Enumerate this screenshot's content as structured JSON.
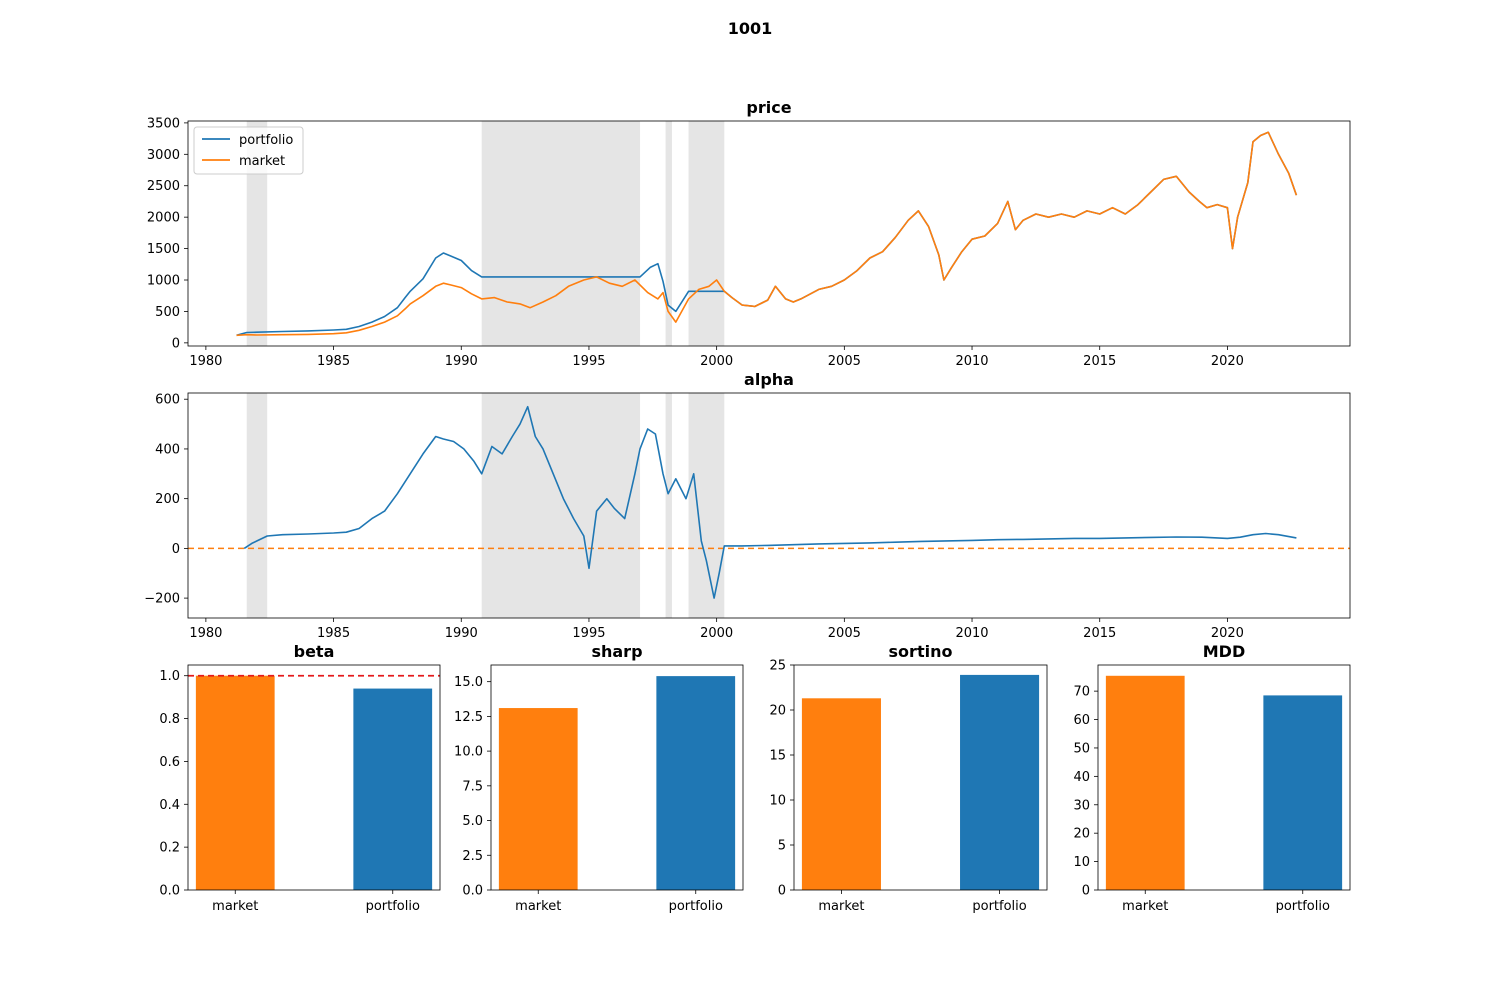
{
  "figure": {
    "title": "1001"
  },
  "colors": {
    "portfolio": "#1f77b4",
    "market": "#ff7f0e",
    "shade": "#e5e5e5",
    "beta_ref": "#e41a1c",
    "alpha_zero": "#ff7f0e"
  },
  "shaded_periods": [
    [
      1981.6,
      1982.4
    ],
    [
      1990.8,
      1997.0
    ],
    [
      1998.0,
      1998.25
    ],
    [
      1998.9,
      2000.3
    ]
  ],
  "chart_data": [
    {
      "id": "price",
      "type": "line",
      "title": "price",
      "xlim": [
        1979.3,
        2024.8
      ],
      "ylim": [
        -50,
        3530
      ],
      "x_ticks": [
        1980,
        1985,
        1990,
        1995,
        2000,
        2005,
        2010,
        2015,
        2020
      ],
      "y_ticks": [
        0,
        500,
        1000,
        1500,
        2000,
        2500,
        3000,
        3500
      ],
      "legend": "upper-left",
      "series": [
        {
          "name": "portfolio",
          "color": "#1f77b4",
          "x": [
            1981.2,
            1981.6,
            1982.0,
            1983.0,
            1984.0,
            1985.0,
            1985.5,
            1986.0,
            1986.5,
            1987.0,
            1987.5,
            1987.8,
            1988.0,
            1988.5,
            1989.0,
            1989.3,
            1989.6,
            1990.0,
            1990.4,
            1990.8,
            1991.5,
            1993.0,
            1995.0,
            1997.0,
            1997.4,
            1997.7,
            1997.9,
            1998.1,
            1998.4,
            1998.9,
            1999.5,
            2000.3,
            2000.6,
            2001.0,
            2001.5,
            2002.0,
            2002.3,
            2002.7,
            2003.0,
            2003.3,
            2004.0,
            2004.5,
            2005.0,
            2005.5,
            2006.0,
            2006.5,
            2007.0,
            2007.5,
            2007.9,
            2008.3,
            2008.7,
            2008.9,
            2009.2,
            2009.6,
            2010.0,
            2010.5,
            2011.0,
            2011.4,
            2011.7,
            2012.0,
            2012.5,
            2013.0,
            2013.5,
            2014.0,
            2014.5,
            2015.0,
            2015.5,
            2016.0,
            2016.5,
            2017.0,
            2017.5,
            2018.0,
            2018.5,
            2018.9,
            2019.2,
            2019.6,
            2020.0,
            2020.2,
            2020.4,
            2020.8,
            2021.0,
            2021.3,
            2021.6,
            2022.0,
            2022.4,
            2022.7
          ],
          "y": [
            120,
            165,
            170,
            180,
            190,
            205,
            215,
            260,
            330,
            420,
            560,
            720,
            820,
            1020,
            1350,
            1430,
            1380,
            1310,
            1150,
            1050,
            1050,
            1050,
            1050,
            1050,
            1200,
            1260,
            980,
            600,
            500,
            820,
            820,
            820,
            720,
            600,
            580,
            680,
            900,
            700,
            650,
            700,
            850,
            900,
            1000,
            1150,
            1350,
            1450,
            1680,
            1950,
            2100,
            1850,
            1400,
            1000,
            1200,
            1450,
            1650,
            1700,
            1900,
            2250,
            1800,
            1950,
            2050,
            2000,
            2050,
            2000,
            2100,
            2050,
            2150,
            2050,
            2200,
            2400,
            2600,
            2650,
            2400,
            2250,
            2150,
            2200,
            2150,
            1500,
            2000,
            2550,
            3200,
            3300,
            3350,
            3000,
            2700,
            2350
          ]
        },
        {
          "name": "market",
          "color": "#ff7f0e",
          "x": [
            1981.2,
            1981.6,
            1982.0,
            1983.0,
            1984.0,
            1985.0,
            1985.5,
            1986.0,
            1986.5,
            1987.0,
            1987.5,
            1987.8,
            1988.0,
            1988.5,
            1989.0,
            1989.3,
            1989.6,
            1990.0,
            1990.4,
            1990.8,
            1991.3,
            1991.8,
            1992.3,
            1992.7,
            1993.2,
            1993.7,
            1994.2,
            1994.8,
            1995.3,
            1995.8,
            1996.3,
            1996.8,
            1997.3,
            1997.7,
            1997.9,
            1998.1,
            1998.4,
            1998.9,
            1999.3,
            1999.7,
            2000.0,
            2000.3,
            2000.6,
            2001.0,
            2001.5,
            2002.0,
            2002.3,
            2002.7,
            2003.0,
            2003.3,
            2004.0,
            2004.5,
            2005.0,
            2005.5,
            2006.0,
            2006.5,
            2007.0,
            2007.5,
            2007.9,
            2008.3,
            2008.7,
            2008.9,
            2009.2,
            2009.6,
            2010.0,
            2010.5,
            2011.0,
            2011.4,
            2011.7,
            2012.0,
            2012.5,
            2013.0,
            2013.5,
            2014.0,
            2014.5,
            2015.0,
            2015.5,
            2016.0,
            2016.5,
            2017.0,
            2017.5,
            2018.0,
            2018.5,
            2018.9,
            2019.2,
            2019.6,
            2020.0,
            2020.2,
            2020.4,
            2020.8,
            2021.0,
            2021.3,
            2021.6,
            2022.0,
            2022.4,
            2022.7
          ],
          "y": [
            120,
            130,
            125,
            130,
            135,
            145,
            160,
            200,
            260,
            330,
            430,
            540,
            620,
            750,
            900,
            950,
            920,
            880,
            780,
            700,
            720,
            650,
            620,
            560,
            650,
            750,
            900,
            1000,
            1050,
            950,
            900,
            1000,
            800,
            700,
            800,
            500,
            330,
            700,
            850,
            900,
            1000,
            820,
            720,
            600,
            580,
            680,
            900,
            700,
            650,
            700,
            850,
            900,
            1000,
            1150,
            1350,
            1450,
            1680,
            1950,
            2100,
            1850,
            1400,
            1000,
            1200,
            1450,
            1650,
            1700,
            1900,
            2250,
            1800,
            1950,
            2050,
            2000,
            2050,
            2000,
            2100,
            2050,
            2150,
            2050,
            2200,
            2400,
            2600,
            2650,
            2400,
            2250,
            2150,
            2200,
            2150,
            1500,
            2000,
            2550,
            3200,
            3300,
            3350,
            3000,
            2700,
            2350
          ]
        }
      ]
    },
    {
      "id": "alpha",
      "type": "line",
      "title": "alpha",
      "xlim": [
        1979.3,
        2024.8
      ],
      "ylim": [
        -280,
        625
      ],
      "x_ticks": [
        1980,
        1985,
        1990,
        1995,
        2000,
        2005,
        2010,
        2015,
        2020
      ],
      "y_ticks": [
        -200,
        0,
        200,
        400,
        600
      ],
      "y_tick_labels": [
        "−200",
        "0",
        "200",
        "400",
        "600"
      ],
      "zero_line": 0,
      "series": [
        {
          "name": "portfolio",
          "color": "#1f77b4",
          "x": [
            1981.5,
            1981.8,
            1982.0,
            1982.4,
            1983.0,
            1984.0,
            1985.0,
            1985.5,
            1986.0,
            1986.5,
            1987.0,
            1987.5,
            1988.0,
            1988.5,
            1989.0,
            1989.3,
            1989.7,
            1990.1,
            1990.5,
            1990.8,
            1991.2,
            1991.6,
            1992.0,
            1992.3,
            1992.6,
            1992.9,
            1993.2,
            1993.6,
            1994.0,
            1994.4,
            1994.8,
            1995.0,
            1995.3,
            1995.7,
            1996.0,
            1996.4,
            1996.8,
            1997.0,
            1997.3,
            1997.6,
            1997.9,
            1998.1,
            1998.4,
            1998.8,
            1999.1,
            1999.4,
            1999.6,
            1999.9,
            2000.1,
            2000.3,
            2001.0,
            2002.0,
            2003.0,
            2004.0,
            2005.0,
            2006.0,
            2007.0,
            2008.0,
            2009.0,
            2010.0,
            2011.0,
            2012.0,
            2013.0,
            2014.0,
            2015.0,
            2016.0,
            2017.0,
            2018.0,
            2019.0,
            2020.0,
            2020.5,
            2021.0,
            2021.5,
            2022.0,
            2022.7
          ],
          "y": [
            0,
            20,
            30,
            50,
            55,
            58,
            62,
            65,
            80,
            120,
            150,
            220,
            300,
            380,
            450,
            440,
            430,
            400,
            350,
            300,
            410,
            380,
            450,
            500,
            570,
            450,
            400,
            300,
            200,
            120,
            50,
            -80,
            150,
            200,
            160,
            120,
            300,
            400,
            480,
            460,
            300,
            220,
            280,
            200,
            300,
            30,
            -50,
            -200,
            -100,
            10,
            10,
            12,
            15,
            18,
            20,
            22,
            25,
            28,
            30,
            32,
            35,
            36,
            38,
            40,
            40,
            42,
            44,
            46,
            45,
            40,
            45,
            55,
            60,
            55,
            42
          ]
        }
      ]
    },
    {
      "id": "beta",
      "type": "bar",
      "title": "beta",
      "categories": [
        "market",
        "portfolio"
      ],
      "values": [
        1.0,
        0.94
      ],
      "colors": [
        "#ff7f0e",
        "#1f77b4"
      ],
      "ylim": [
        0,
        1.05
      ],
      "y_ticks": [
        0.0,
        0.2,
        0.4,
        0.6,
        0.8,
        1.0
      ],
      "y_tick_labels": [
        "0.0",
        "0.2",
        "0.4",
        "0.6",
        "0.8",
        "1.0"
      ],
      "reference_line": 1.0
    },
    {
      "id": "sharp",
      "type": "bar",
      "title": "sharp",
      "categories": [
        "market",
        "portfolio"
      ],
      "values": [
        13.1,
        15.4
      ],
      "colors": [
        "#ff7f0e",
        "#1f77b4"
      ],
      "ylim": [
        0,
        16.2
      ],
      "y_ticks": [
        0.0,
        2.5,
        5.0,
        7.5,
        10.0,
        12.5,
        15.0
      ],
      "y_tick_labels": [
        "0.0",
        "2.5",
        "5.0",
        "7.5",
        "10.0",
        "12.5",
        "15.0"
      ]
    },
    {
      "id": "sortino",
      "type": "bar",
      "title": "sortino",
      "categories": [
        "market",
        "portfolio"
      ],
      "values": [
        21.3,
        23.9
      ],
      "colors": [
        "#ff7f0e",
        "#1f77b4"
      ],
      "ylim": [
        0,
        25.0
      ],
      "y_ticks": [
        0,
        5,
        10,
        15,
        20,
        25
      ],
      "y_tick_labels": [
        "0",
        "5",
        "10",
        "15",
        "20",
        "25"
      ]
    },
    {
      "id": "mdd",
      "type": "bar",
      "title": "MDD",
      "categories": [
        "market",
        "portfolio"
      ],
      "values": [
        75.4,
        68.5
      ],
      "colors": [
        "#ff7f0e",
        "#1f77b4"
      ],
      "ylim": [
        0,
        79.2
      ],
      "y_ticks": [
        0,
        10,
        20,
        30,
        40,
        50,
        60,
        70
      ],
      "y_tick_labels": [
        "0",
        "10",
        "20",
        "30",
        "40",
        "50",
        "60",
        "70"
      ]
    }
  ]
}
